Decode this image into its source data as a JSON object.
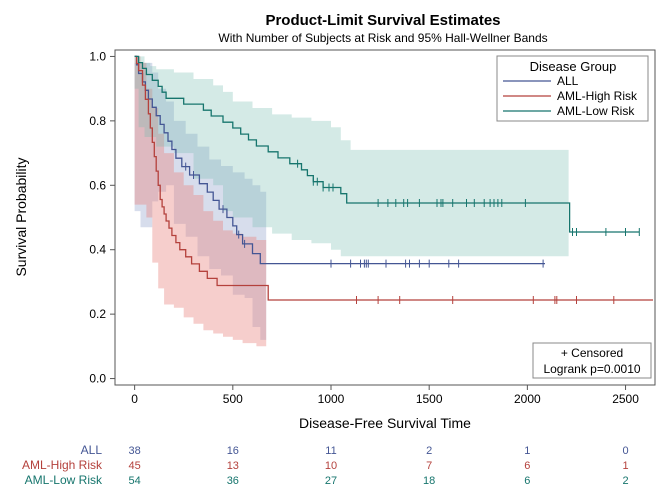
{
  "chart_data": {
    "type": "line",
    "title": "Product-Limit Survival Estimates",
    "subtitle": "With Number of Subjects at Risk and 95% Hall-Wellner Bands",
    "xlabel": "Disease-Free Survival Time",
    "ylabel": "Survival Probability",
    "xlim": [
      -100,
      2650
    ],
    "ylim": [
      -0.02,
      1.02
    ],
    "x_ticks": [
      0,
      500,
      1000,
      1500,
      2000,
      2500
    ],
    "y_ticks": [
      0.0,
      0.2,
      0.4,
      0.6,
      0.8,
      1.0
    ],
    "x_tick_labels": [
      "0",
      "500",
      "1000",
      "1500",
      "2000",
      "2500"
    ],
    "y_tick_labels": [
      "0.0",
      "0.2",
      "0.4",
      "0.6",
      "0.8",
      "1.0"
    ],
    "legend": {
      "title": "Disease Group",
      "position": "top-right",
      "entries": [
        "ALL",
        "AML-High Risk",
        "AML-Low Risk"
      ]
    },
    "inset": {
      "position": "bottom-right",
      "censored_label": "+ Censored",
      "test_label": "Logrank p=0.0010"
    },
    "series": [
      {
        "name": "ALL",
        "color": "#445694",
        "band_color": "#7a90bf",
        "band_opacity": 0.3,
        "steps": [
          [
            0,
            1.0
          ],
          [
            10,
            0.974
          ],
          [
            20,
            0.947
          ],
          [
            40,
            0.921
          ],
          [
            55,
            0.895
          ],
          [
            70,
            0.868
          ],
          [
            90,
            0.842
          ],
          [
            110,
            0.816
          ],
          [
            130,
            0.789
          ],
          [
            150,
            0.763
          ],
          [
            170,
            0.737
          ],
          [
            190,
            0.711
          ],
          [
            210,
            0.684
          ],
          [
            240,
            0.658
          ],
          [
            280,
            0.632
          ],
          [
            330,
            0.605
          ],
          [
            370,
            0.579
          ],
          [
            400,
            0.553
          ],
          [
            430,
            0.526
          ],
          [
            470,
            0.5
          ],
          [
            500,
            0.474
          ],
          [
            520,
            0.447
          ],
          [
            550,
            0.418
          ],
          [
            600,
            0.388
          ],
          [
            640,
            0.357
          ],
          [
            2090,
            0.357
          ]
        ],
        "band": [
          [
            0,
            0.98,
            0.52
          ],
          [
            30,
            0.98,
            0.47
          ],
          [
            60,
            0.98,
            0.47
          ],
          [
            90,
            0.95,
            0.55
          ],
          [
            120,
            0.9,
            0.58
          ],
          [
            160,
            0.86,
            0.6
          ],
          [
            200,
            0.8,
            0.48
          ],
          [
            260,
            0.76,
            0.44
          ],
          [
            320,
            0.72,
            0.38
          ],
          [
            380,
            0.68,
            0.34
          ],
          [
            440,
            0.66,
            0.32
          ],
          [
            500,
            0.64,
            0.26
          ],
          [
            560,
            0.62,
            0.25
          ],
          [
            600,
            0.6,
            0.16
          ],
          [
            640,
            0.58,
            0.12
          ],
          [
            670,
            0.58,
            0.12
          ]
        ],
        "censored": [
          260,
          300,
          450,
          530,
          560,
          1000,
          1100,
          1150,
          1170,
          1180,
          1190,
          1280,
          1380,
          1400,
          1450,
          1500,
          1600,
          1650,
          2080
        ]
      },
      {
        "name": "AML-High Risk",
        "color": "#b4413c",
        "band_color": "#e88580",
        "band_opacity": 0.4,
        "steps": [
          [
            0,
            1.0
          ],
          [
            10,
            0.978
          ],
          [
            20,
            0.956
          ],
          [
            40,
            0.911
          ],
          [
            55,
            0.867
          ],
          [
            70,
            0.822
          ],
          [
            80,
            0.778
          ],
          [
            90,
            0.733
          ],
          [
            100,
            0.689
          ],
          [
            110,
            0.644
          ],
          [
            120,
            0.6
          ],
          [
            130,
            0.556
          ],
          [
            140,
            0.533
          ],
          [
            150,
            0.511
          ],
          [
            160,
            0.489
          ],
          [
            175,
            0.467
          ],
          [
            190,
            0.444
          ],
          [
            210,
            0.422
          ],
          [
            230,
            0.4
          ],
          [
            260,
            0.378
          ],
          [
            290,
            0.356
          ],
          [
            330,
            0.333
          ],
          [
            370,
            0.311
          ],
          [
            420,
            0.289
          ],
          [
            680,
            0.244
          ],
          [
            2640,
            0.244
          ]
        ],
        "band": [
          [
            0,
            1.0,
            0.54
          ],
          [
            30,
            0.98,
            0.54
          ],
          [
            60,
            0.9,
            0.5
          ],
          [
            90,
            0.84,
            0.36
          ],
          [
            120,
            0.76,
            0.28
          ],
          [
            150,
            0.7,
            0.23
          ],
          [
            200,
            0.64,
            0.22
          ],
          [
            250,
            0.6,
            0.19
          ],
          [
            300,
            0.57,
            0.17
          ],
          [
            350,
            0.52,
            0.15
          ],
          [
            400,
            0.49,
            0.14
          ],
          [
            450,
            0.46,
            0.13
          ],
          [
            500,
            0.45,
            0.12
          ],
          [
            550,
            0.44,
            0.11
          ],
          [
            620,
            0.43,
            0.1
          ],
          [
            670,
            0.42,
            0.1
          ]
        ],
        "censored": [
          1130,
          1240,
          1350,
          1620,
          2030,
          2140,
          2150,
          2250,
          2440
        ]
      },
      {
        "name": "AML-Low Risk",
        "color": "#16756d",
        "band_color": "#72b8ad",
        "band_opacity": 0.3,
        "steps": [
          [
            0,
            1.0
          ],
          [
            20,
            0.981
          ],
          [
            40,
            0.963
          ],
          [
            60,
            0.944
          ],
          [
            90,
            0.926
          ],
          [
            120,
            0.907
          ],
          [
            140,
            0.889
          ],
          [
            160,
            0.87
          ],
          [
            250,
            0.852
          ],
          [
            350,
            0.833
          ],
          [
            390,
            0.815
          ],
          [
            450,
            0.796
          ],
          [
            500,
            0.778
          ],
          [
            540,
            0.759
          ],
          [
            580,
            0.741
          ],
          [
            620,
            0.722
          ],
          [
            680,
            0.704
          ],
          [
            730,
            0.685
          ],
          [
            790,
            0.667
          ],
          [
            850,
            0.648
          ],
          [
            880,
            0.63
          ],
          [
            910,
            0.611
          ],
          [
            960,
            0.593
          ],
          [
            1050,
            0.574
          ],
          [
            1080,
            0.545
          ],
          [
            2210,
            0.545
          ],
          [
            2215,
            0.455
          ],
          [
            2570,
            0.455
          ]
        ],
        "band": [
          [
            0,
            1.0,
            0.9
          ],
          [
            20,
            1.0,
            0.78
          ],
          [
            50,
            0.98,
            0.75
          ],
          [
            80,
            0.97,
            0.75
          ],
          [
            110,
            0.96,
            0.72
          ],
          [
            200,
            0.95,
            0.7
          ],
          [
            300,
            0.93,
            0.62
          ],
          [
            400,
            0.91,
            0.6
          ],
          [
            450,
            0.89,
            0.52
          ],
          [
            500,
            0.86,
            0.5
          ],
          [
            600,
            0.84,
            0.47
          ],
          [
            700,
            0.82,
            0.45
          ],
          [
            800,
            0.81,
            0.43
          ],
          [
            900,
            0.8,
            0.42
          ],
          [
            1000,
            0.78,
            0.4
          ],
          [
            1050,
            0.74,
            0.38
          ],
          [
            1100,
            0.71,
            0.38
          ],
          [
            2200,
            0.71,
            0.38
          ],
          [
            2210,
            0.71,
            0.38
          ]
        ],
        "censored": [
          830,
          910,
          930,
          960,
          990,
          1010,
          1240,
          1290,
          1330,
          1370,
          1390,
          1450,
          1540,
          1560,
          1570,
          1620,
          1690,
          1730,
          1780,
          1810,
          1830,
          1850,
          1870,
          1990,
          2230,
          2250,
          2400,
          2500,
          2570
        ]
      }
    ],
    "at_risk": {
      "times": [
        0,
        500,
        1000,
        1500,
        2000,
        2500
      ],
      "rows": [
        {
          "name": "ALL",
          "color": "#445694",
          "counts": [
            "38",
            "16",
            "11",
            "2",
            "1",
            "0"
          ]
        },
        {
          "name": "AML-High Risk",
          "color": "#b4413c",
          "counts": [
            "45",
            "13",
            "10",
            "7",
            "6",
            "1"
          ]
        },
        {
          "name": "AML-Low Risk",
          "color": "#16756d",
          "counts": [
            "54",
            "36",
            "27",
            "18",
            "6",
            "2"
          ]
        }
      ]
    }
  }
}
